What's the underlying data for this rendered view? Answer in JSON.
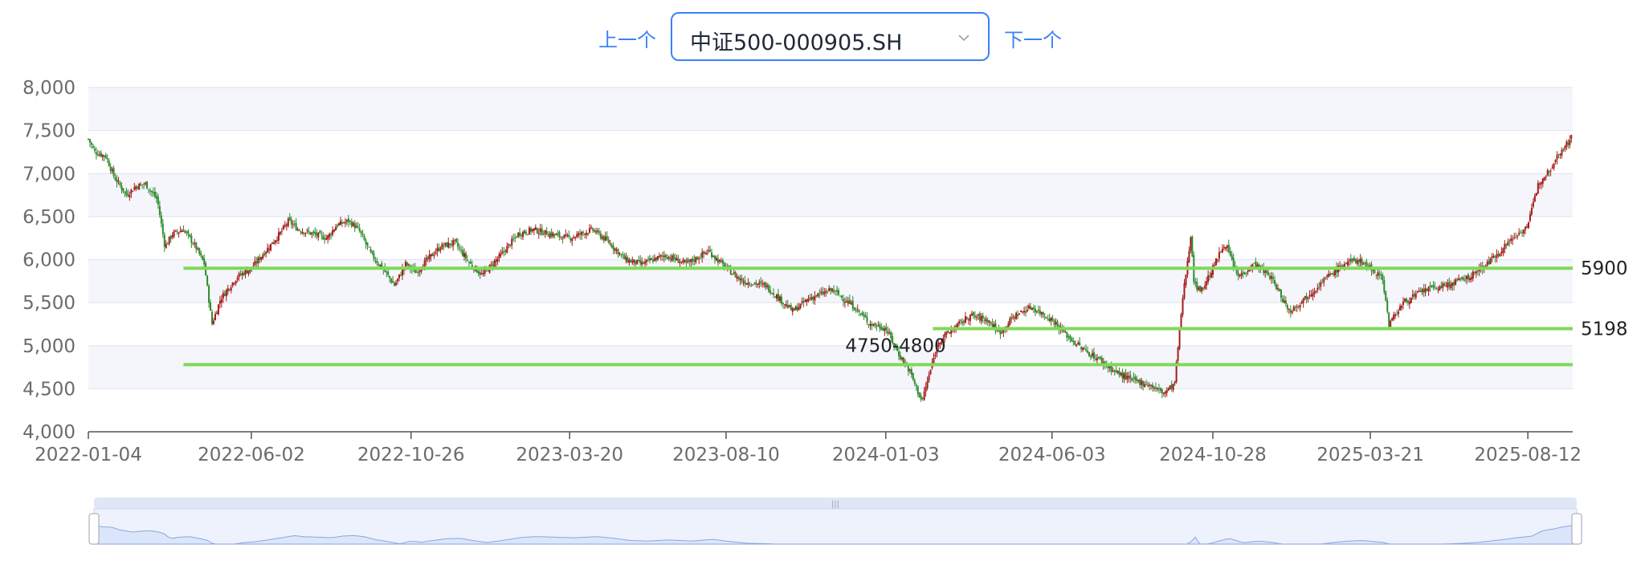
{
  "nav": {
    "prev_label": "上一个",
    "next_label": "下一个",
    "selected_index": "中证500-000905.SH"
  },
  "colors": {
    "up": "#a61b1b",
    "down": "#2f8a2f",
    "level": "#7ed957",
    "grid": "#dfe3ee",
    "band": "#f4f6fb",
    "axis_text": "#6b6b6b",
    "slider_fill": "#dce6fb",
    "slider_line": "#8aa6e0"
  },
  "chart_data": {
    "type": "candlestick",
    "title": "",
    "xlabel": "",
    "ylabel": "",
    "x_range": [
      "2022-01-04",
      "2025-09-22"
    ],
    "ylim": [
      4000,
      8000
    ],
    "y_ticks": [
      "4,000",
      "4,500",
      "5,000",
      "5,500",
      "6,000",
      "6,500",
      "7,000",
      "7,500",
      "8,000"
    ],
    "x_ticks": [
      "2022-01-04",
      "2022-06-02",
      "2022-10-26",
      "2023-03-20",
      "2023-08-10",
      "2024-01-03",
      "2024-06-03",
      "2024-10-28",
      "2025-03-21",
      "2025-08-12"
    ],
    "close_path": [
      [
        "2022-01-04",
        7400
      ],
      [
        "2022-01-10",
        7250
      ],
      [
        "2022-01-20",
        7200
      ],
      [
        "2022-01-28",
        6950
      ],
      [
        "2022-02-08",
        6750
      ],
      [
        "2022-02-16",
        6850
      ],
      [
        "2022-02-25",
        6880
      ],
      [
        "2022-03-08",
        6700
      ],
      [
        "2022-03-15",
        6150
      ],
      [
        "2022-03-22",
        6300
      ],
      [
        "2022-04-01",
        6350
      ],
      [
        "2022-04-12",
        6150
      ],
      [
        "2022-04-20",
        5950
      ],
      [
        "2022-04-27",
        5250
      ],
      [
        "2022-05-05",
        5550
      ],
      [
        "2022-05-20",
        5800
      ],
      [
        "2022-06-02",
        5900
      ],
      [
        "2022-06-15",
        6100
      ],
      [
        "2022-06-28",
        6300
      ],
      [
        "2022-07-06",
        6450
      ],
      [
        "2022-07-15",
        6350
      ],
      [
        "2022-07-28",
        6300
      ],
      [
        "2022-08-10",
        6250
      ],
      [
        "2022-08-19",
        6400
      ],
      [
        "2022-08-30",
        6450
      ],
      [
        "2022-09-08",
        6350
      ],
      [
        "2022-09-20",
        6050
      ],
      [
        "2022-09-30",
        5900
      ],
      [
        "2022-10-11",
        5700
      ],
      [
        "2022-10-21",
        5950
      ],
      [
        "2022-10-31",
        5850
      ],
      [
        "2022-11-10",
        6000
      ],
      [
        "2022-11-22",
        6150
      ],
      [
        "2022-12-05",
        6200
      ],
      [
        "2022-12-19",
        5950
      ],
      [
        "2022-12-30",
        5820
      ],
      [
        "2023-01-16",
        6050
      ],
      [
        "2023-02-01",
        6300
      ],
      [
        "2023-02-15",
        6350
      ],
      [
        "2023-03-01",
        6300
      ],
      [
        "2023-03-20",
        6250
      ],
      [
        "2023-04-10",
        6350
      ],
      [
        "2023-04-25",
        6200
      ],
      [
        "2023-05-10",
        6000
      ],
      [
        "2023-05-25",
        5950
      ],
      [
        "2023-06-15",
        6050
      ],
      [
        "2023-07-05",
        5950
      ],
      [
        "2023-07-25",
        6100
      ],
      [
        "2023-08-10",
        5900
      ],
      [
        "2023-08-25",
        5750
      ],
      [
        "2023-09-15",
        5700
      ],
      [
        "2023-10-10",
        5400
      ],
      [
        "2023-10-25",
        5550
      ],
      [
        "2023-11-15",
        5650
      ],
      [
        "2023-12-05",
        5450
      ],
      [
        "2023-12-20",
        5250
      ],
      [
        "2024-01-03",
        5200
      ],
      [
        "2024-01-15",
        4900
      ],
      [
        "2024-01-25",
        4700
      ],
      [
        "2024-02-05",
        4350
      ],
      [
        "2024-02-20",
        5050
      ],
      [
        "2024-03-05",
        5200
      ],
      [
        "2024-03-20",
        5350
      ],
      [
        "2024-04-05",
        5300
      ],
      [
        "2024-04-16",
        5150
      ],
      [
        "2024-04-30",
        5350
      ],
      [
        "2024-05-15",
        5450
      ],
      [
        "2024-06-03",
        5300
      ],
      [
        "2024-06-18",
        5100
      ],
      [
        "2024-07-02",
        4950
      ],
      [
        "2024-07-15",
        4850
      ],
      [
        "2024-07-30",
        4700
      ],
      [
        "2024-08-15",
        4600
      ],
      [
        "2024-08-30",
        4550
      ],
      [
        "2024-09-13",
        4450
      ],
      [
        "2024-09-23",
        4550
      ],
      [
        "2024-09-30",
        5500
      ],
      [
        "2024-10-08",
        6300
      ],
      [
        "2024-10-11",
        5700
      ],
      [
        "2024-10-18",
        5650
      ],
      [
        "2024-10-28",
        5900
      ],
      [
        "2024-11-08",
        6200
      ],
      [
        "2024-11-20",
        5800
      ],
      [
        "2024-12-05",
        5950
      ],
      [
        "2024-12-20",
        5800
      ],
      [
        "2025-01-06",
        5400
      ],
      [
        "2025-01-20",
        5550
      ],
      [
        "2025-02-10",
        5800
      ],
      [
        "2025-02-25",
        5950
      ],
      [
        "2025-03-10",
        6000
      ],
      [
        "2025-03-21",
        5900
      ],
      [
        "2025-04-01",
        5800
      ],
      [
        "2025-04-07",
        5250
      ],
      [
        "2025-04-20",
        5500
      ],
      [
        "2025-05-10",
        5650
      ],
      [
        "2025-05-30",
        5700
      ],
      [
        "2025-06-20",
        5800
      ],
      [
        "2025-07-10",
        6000
      ],
      [
        "2025-07-25",
        6200
      ],
      [
        "2025-08-12",
        6400
      ],
      [
        "2025-08-22",
        6900
      ],
      [
        "2025-09-01",
        7050
      ],
      [
        "2025-09-10",
        7250
      ],
      [
        "2025-09-17",
        7350
      ],
      [
        "2025-09-22",
        7450
      ]
    ],
    "levels": [
      {
        "label": "5900",
        "value": 5900,
        "from": "2022-04-01",
        "to": "2025-09-22"
      },
      {
        "label": "5198",
        "value": 5198,
        "from": "2024-02-15",
        "to": "2025-09-22"
      },
      {
        "label": "4750-4800",
        "value": 4780,
        "from": "2022-04-01",
        "to": "2025-09-22"
      }
    ]
  },
  "zoom_slider": {
    "start": "2022-01-04",
    "end": "2025-09-22"
  }
}
